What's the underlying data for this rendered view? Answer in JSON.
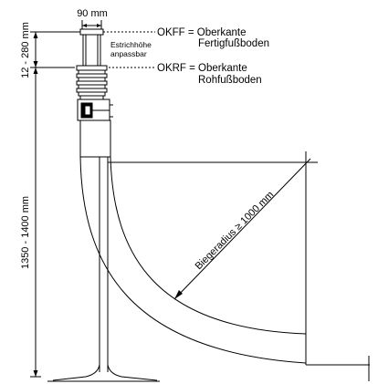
{
  "dimensions": {
    "width_top": "90 mm",
    "screed_range": "12 - 280 mm",
    "total_height": "1350 - 1400 mm",
    "bend_radius": "Biegeradius ≥ 1000 mm"
  },
  "notes": {
    "screed_adjustable_line1": "Estrichhöhe",
    "screed_adjustable_line2": "anpassbar"
  },
  "levels": {
    "okff": {
      "label": "OKFF = Oberkante",
      "label_line2": "Fertigfußboden"
    },
    "okrf": {
      "label": "OKRF = Oberkante",
      "label_line2": "Rohfußboden"
    }
  },
  "colors": {
    "line": "#000000",
    "background": "#ffffff"
  }
}
